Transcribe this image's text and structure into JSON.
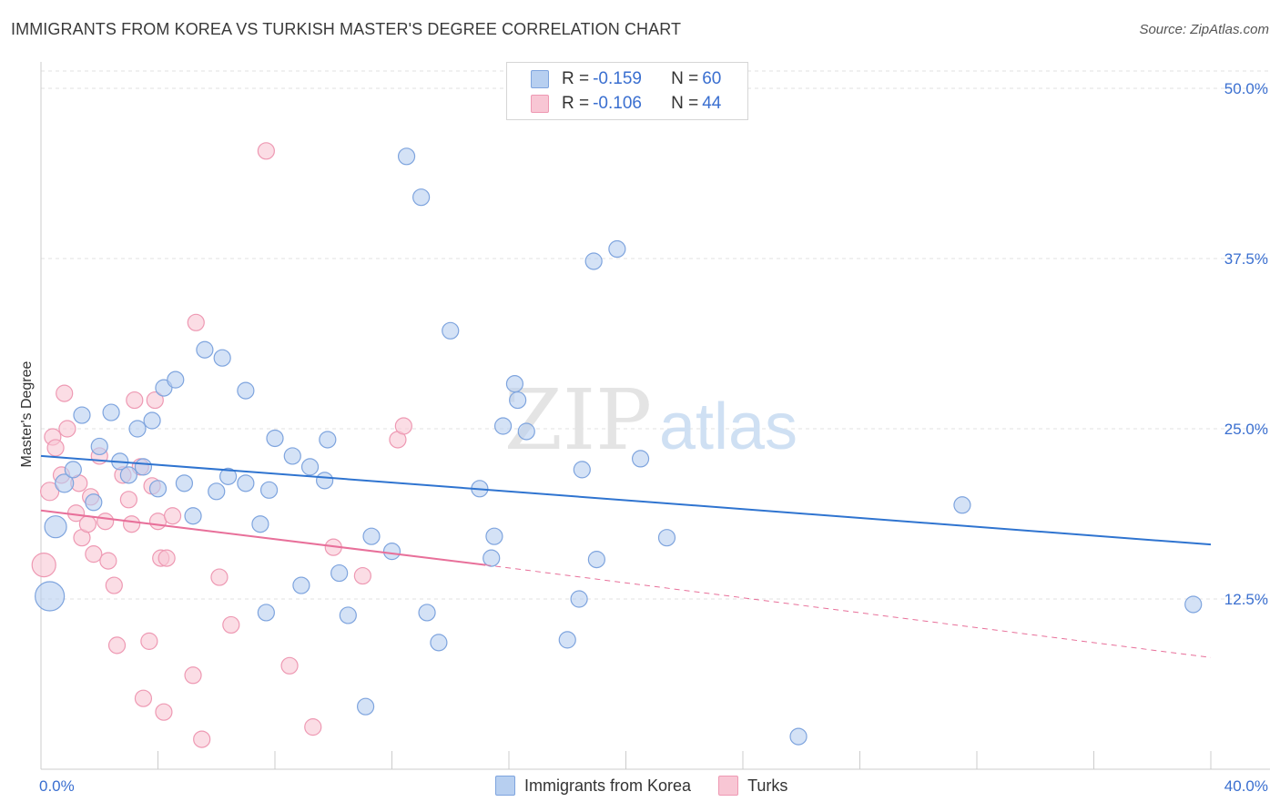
{
  "title": "IMMIGRANTS FROM KOREA VS TURKISH MASTER'S DEGREE CORRELATION CHART",
  "source": "Source: ZipAtlas.com",
  "watermark": {
    "zip": "ZIP",
    "atlas": "atlas"
  },
  "legend": {
    "rows": [
      {
        "r_label": "R = ",
        "r_value": "-0.159",
        "n_label": "N = ",
        "n_value": "60"
      },
      {
        "r_label": "R = ",
        "r_value": "-0.106",
        "n_label": "N = ",
        "n_value": "44"
      }
    ]
  },
  "bottom_legend": [
    "Immigrants from Korea",
    "Turks"
  ],
  "colors": {
    "blue_fill": "#b7cff0",
    "blue_stroke": "#7ea4de",
    "blue_line": "#2f74d0",
    "pink_fill": "#f8c6d4",
    "pink_stroke": "#ee99b3",
    "pink_line": "#e8709a",
    "tick_label": "#3a6fd0",
    "grid": "#e2e2e2"
  },
  "chart_data": {
    "type": "scatter",
    "title": "IMMIGRANTS FROM KOREA VS TURKISH MASTER'S DEGREE CORRELATION CHART",
    "xlabel": "",
    "ylabel": "Master's Degree",
    "xlim": [
      0,
      40
    ],
    "ylim": [
      0,
      50
    ],
    "x_tick_labels": [
      "0.0%",
      "40.0%"
    ],
    "y_ticks": [
      12.5,
      25.0,
      37.5,
      50.0
    ],
    "y_tick_labels": [
      "12.5%",
      "25.0%",
      "37.5%",
      "50.0%"
    ],
    "grid": "horizontal dashed",
    "series": [
      {
        "name": "Immigrants from Korea",
        "r": -0.159,
        "n": 60,
        "trend": {
          "x": [
            0,
            40
          ],
          "y": [
            23.0,
            16.5
          ]
        },
        "points": [
          {
            "x": 0.3,
            "y": 12.7,
            "s": 16
          },
          {
            "x": 0.5,
            "y": 17.8,
            "s": 12
          },
          {
            "x": 0.8,
            "y": 21.0,
            "s": 10
          },
          {
            "x": 1.1,
            "y": 22.0,
            "s": 9
          },
          {
            "x": 1.4,
            "y": 26.0,
            "s": 9
          },
          {
            "x": 1.8,
            "y": 19.6,
            "s": 9
          },
          {
            "x": 2.0,
            "y": 23.7,
            "s": 9
          },
          {
            "x": 2.4,
            "y": 26.2,
            "s": 9
          },
          {
            "x": 2.7,
            "y": 22.6,
            "s": 9
          },
          {
            "x": 3.0,
            "y": 21.6,
            "s": 9
          },
          {
            "x": 3.3,
            "y": 25.0,
            "s": 9
          },
          {
            "x": 3.5,
            "y": 22.2,
            "s": 9
          },
          {
            "x": 3.8,
            "y": 25.6,
            "s": 9
          },
          {
            "x": 4.0,
            "y": 20.6,
            "s": 9
          },
          {
            "x": 4.2,
            "y": 28.0,
            "s": 9
          },
          {
            "x": 4.6,
            "y": 28.6,
            "s": 9
          },
          {
            "x": 4.9,
            "y": 21.0,
            "s": 9
          },
          {
            "x": 5.2,
            "y": 18.6,
            "s": 9
          },
          {
            "x": 5.6,
            "y": 30.8,
            "s": 9
          },
          {
            "x": 6.0,
            "y": 20.4,
            "s": 9
          },
          {
            "x": 6.2,
            "y": 30.2,
            "s": 9
          },
          {
            "x": 6.4,
            "y": 21.5,
            "s": 9
          },
          {
            "x": 7.0,
            "y": 21.0,
            "s": 9
          },
          {
            "x": 7.0,
            "y": 27.8,
            "s": 9
          },
          {
            "x": 7.5,
            "y": 18.0,
            "s": 9
          },
          {
            "x": 7.7,
            "y": 11.5,
            "s": 9
          },
          {
            "x": 7.8,
            "y": 20.5,
            "s": 9
          },
          {
            "x": 8.0,
            "y": 24.3,
            "s": 9
          },
          {
            "x": 8.6,
            "y": 23.0,
            "s": 9
          },
          {
            "x": 8.9,
            "y": 13.5,
            "s": 9
          },
          {
            "x": 9.2,
            "y": 22.2,
            "s": 9
          },
          {
            "x": 9.7,
            "y": 21.2,
            "s": 9
          },
          {
            "x": 9.8,
            "y": 24.2,
            "s": 9
          },
          {
            "x": 10.2,
            "y": 14.4,
            "s": 9
          },
          {
            "x": 10.5,
            "y": 11.3,
            "s": 9
          },
          {
            "x": 11.1,
            "y": 4.6,
            "s": 9
          },
          {
            "x": 11.3,
            "y": 17.1,
            "s": 9
          },
          {
            "x": 12.0,
            "y": 16.0,
            "s": 9
          },
          {
            "x": 12.5,
            "y": 45.0,
            "s": 9
          },
          {
            "x": 13.0,
            "y": 42.0,
            "s": 9
          },
          {
            "x": 13.2,
            "y": 11.5,
            "s": 9
          },
          {
            "x": 13.6,
            "y": 9.3,
            "s": 9
          },
          {
            "x": 14.0,
            "y": 32.2,
            "s": 9
          },
          {
            "x": 15.0,
            "y": 20.6,
            "s": 9
          },
          {
            "x": 15.4,
            "y": 15.5,
            "s": 9
          },
          {
            "x": 15.5,
            "y": 17.1,
            "s": 9
          },
          {
            "x": 15.8,
            "y": 25.2,
            "s": 9
          },
          {
            "x": 16.2,
            "y": 28.3,
            "s": 9
          },
          {
            "x": 16.3,
            "y": 27.1,
            "s": 9
          },
          {
            "x": 16.6,
            "y": 24.8,
            "s": 9
          },
          {
            "x": 18.0,
            "y": 9.5,
            "s": 9
          },
          {
            "x": 18.4,
            "y": 12.5,
            "s": 9
          },
          {
            "x": 18.5,
            "y": 22.0,
            "s": 9
          },
          {
            "x": 18.9,
            "y": 37.3,
            "s": 9
          },
          {
            "x": 19.0,
            "y": 15.4,
            "s": 9
          },
          {
            "x": 19.7,
            "y": 38.2,
            "s": 9
          },
          {
            "x": 20.5,
            "y": 22.8,
            "s": 9
          },
          {
            "x": 21.4,
            "y": 17.0,
            "s": 9
          },
          {
            "x": 25.9,
            "y": 2.4,
            "s": 9
          },
          {
            "x": 31.5,
            "y": 19.4,
            "s": 9
          },
          {
            "x": 39.4,
            "y": 12.1,
            "s": 9
          }
        ]
      },
      {
        "name": "Turks",
        "r": -0.106,
        "n": 44,
        "trend_solid": {
          "x": [
            0,
            15.2
          ],
          "y": [
            19.0,
            15.0
          ]
        },
        "trend_dashed": {
          "x": [
            15.2,
            40
          ],
          "y": [
            15.0,
            8.2
          ]
        },
        "points": [
          {
            "x": 0.1,
            "y": 15.0,
            "s": 13
          },
          {
            "x": 0.3,
            "y": 20.4,
            "s": 10
          },
          {
            "x": 0.4,
            "y": 24.4,
            "s": 9
          },
          {
            "x": 0.5,
            "y": 23.6,
            "s": 9
          },
          {
            "x": 0.7,
            "y": 21.6,
            "s": 9
          },
          {
            "x": 0.8,
            "y": 27.6,
            "s": 9
          },
          {
            "x": 0.9,
            "y": 25.0,
            "s": 9
          },
          {
            "x": 1.2,
            "y": 18.8,
            "s": 9
          },
          {
            "x": 1.3,
            "y": 21.0,
            "s": 9
          },
          {
            "x": 1.4,
            "y": 17.0,
            "s": 9
          },
          {
            "x": 1.6,
            "y": 18.0,
            "s": 9
          },
          {
            "x": 1.7,
            "y": 20.0,
            "s": 9
          },
          {
            "x": 1.8,
            "y": 15.8,
            "s": 9
          },
          {
            "x": 2.0,
            "y": 23.0,
            "s": 9
          },
          {
            "x": 2.2,
            "y": 18.2,
            "s": 9
          },
          {
            "x": 2.3,
            "y": 15.3,
            "s": 9
          },
          {
            "x": 2.5,
            "y": 13.5,
            "s": 9
          },
          {
            "x": 2.6,
            "y": 9.1,
            "s": 9
          },
          {
            "x": 2.8,
            "y": 21.6,
            "s": 9
          },
          {
            "x": 3.0,
            "y": 19.8,
            "s": 9
          },
          {
            "x": 3.1,
            "y": 18.0,
            "s": 9
          },
          {
            "x": 3.2,
            "y": 27.1,
            "s": 9
          },
          {
            "x": 3.4,
            "y": 22.2,
            "s": 9
          },
          {
            "x": 3.5,
            "y": 5.2,
            "s": 9
          },
          {
            "x": 3.7,
            "y": 9.4,
            "s": 9
          },
          {
            "x": 3.8,
            "y": 20.8,
            "s": 9
          },
          {
            "x": 3.9,
            "y": 27.1,
            "s": 9
          },
          {
            "x": 4.0,
            "y": 18.2,
            "s": 9
          },
          {
            "x": 4.1,
            "y": 15.5,
            "s": 9
          },
          {
            "x": 4.2,
            "y": 4.2,
            "s": 9
          },
          {
            "x": 4.3,
            "y": 15.5,
            "s": 9
          },
          {
            "x": 4.5,
            "y": 18.6,
            "s": 9
          },
          {
            "x": 5.2,
            "y": 6.9,
            "s": 9
          },
          {
            "x": 5.3,
            "y": 32.8,
            "s": 9
          },
          {
            "x": 5.5,
            "y": 2.2,
            "s": 9
          },
          {
            "x": 6.1,
            "y": 14.1,
            "s": 9
          },
          {
            "x": 6.5,
            "y": 10.6,
            "s": 9
          },
          {
            "x": 7.7,
            "y": 45.4,
            "s": 9
          },
          {
            "x": 8.5,
            "y": 7.6,
            "s": 9
          },
          {
            "x": 9.3,
            "y": 3.1,
            "s": 9
          },
          {
            "x": 10.0,
            "y": 16.3,
            "s": 9
          },
          {
            "x": 11.0,
            "y": 14.2,
            "s": 9
          },
          {
            "x": 12.2,
            "y": 24.2,
            "s": 9
          },
          {
            "x": 12.4,
            "y": 25.2,
            "s": 9
          }
        ]
      }
    ]
  }
}
